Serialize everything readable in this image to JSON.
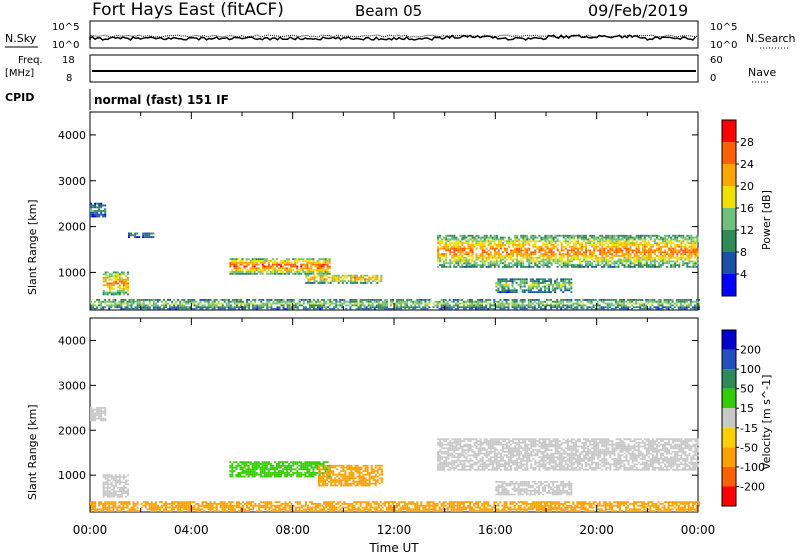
{
  "header": {
    "site": "Fort Hays East (fitACF)",
    "beam": "Beam 05",
    "date": "09/Feb/2019"
  },
  "top_panels": {
    "nsky": {
      "label": "N.Sky",
      "yticks": [
        "10^5",
        "10^0"
      ]
    },
    "nsearch": {
      "label": "N.Search",
      "yticks": [
        "10^5",
        "10^0"
      ]
    },
    "freq": {
      "label_line1": "Freq.",
      "label_line2": "[MHz]",
      "yticks": [
        "18",
        "8"
      ]
    },
    "nave": {
      "label": "Nave",
      "yticks": [
        "60",
        "0"
      ]
    },
    "cpid": {
      "label": "CPID",
      "value": "normal (fast) 151 IF"
    }
  },
  "colors": {
    "power_scale": [
      "#0000ff",
      "#1a50a8",
      "#2e8b57",
      "#6ec07a",
      "#f0e000",
      "#ffa500",
      "#ff6000",
      "#ff0000"
    ],
    "velocity_scale": [
      "#0000d0",
      "#2050c0",
      "#2e8b57",
      "#33cc00",
      "#c8c8c8",
      "#ffd000",
      "#ffa000",
      "#ff6000",
      "#ff0000"
    ]
  },
  "chart_data": [
    {
      "type": "heatmap",
      "id": "power",
      "ylabel": "Slant Range [km]",
      "ylim": [
        180,
        4500
      ],
      "yticks": [
        1000,
        2000,
        3000,
        4000
      ],
      "xlim": [
        0,
        24
      ],
      "colorbar": {
        "label": "Power [dB]",
        "ticks": [
          4,
          8,
          12,
          16,
          20,
          24,
          28
        ],
        "range": [
          0,
          32
        ]
      },
      "echo_regions": [
        {
          "t0": 0.0,
          "t1": 0.6,
          "r0": 2200,
          "r1": 2500,
          "value": 10
        },
        {
          "t0": 0.5,
          "t1": 1.5,
          "r0": 500,
          "r1": 1000,
          "value": 22
        },
        {
          "t0": 1.5,
          "t1": 2.5,
          "r0": 1750,
          "r1": 1850,
          "value": 9
        },
        {
          "t0": 5.5,
          "t1": 9.5,
          "r0": 950,
          "r1": 1300,
          "value": 24
        },
        {
          "t0": 8.5,
          "t1": 11.5,
          "r0": 750,
          "r1": 950,
          "value": 21
        },
        {
          "t0": 13.7,
          "t1": 24.0,
          "r0": 1100,
          "r1": 1800,
          "value": 22
        },
        {
          "t0": 16.0,
          "t1": 19.0,
          "r0": 550,
          "r1": 850,
          "value": 14
        },
        {
          "t0": 0.0,
          "t1": 24.0,
          "r0": 180,
          "r1": 420,
          "value": 14
        }
      ]
    },
    {
      "type": "heatmap",
      "id": "velocity",
      "xlabel": "Time UT",
      "ylabel": "Slant Range [km]",
      "ylim": [
        180,
        4500
      ],
      "yticks": [
        1000,
        2000,
        3000,
        4000
      ],
      "xlim": [
        0,
        24
      ],
      "xticks": [
        "00:00",
        "04:00",
        "08:00",
        "12:00",
        "16:00",
        "20:00",
        "00:00"
      ],
      "colorbar": {
        "label": "Velocity [m s^-1]",
        "ticks": [
          200,
          100,
          50,
          15,
          -15,
          -50,
          -100,
          -200
        ]
      },
      "echo_regions": [
        {
          "t0": 0.0,
          "t1": 0.6,
          "r0": 2200,
          "r1": 2500,
          "value": 0
        },
        {
          "t0": 0.5,
          "t1": 1.5,
          "r0": 500,
          "r1": 1000,
          "value": 0
        },
        {
          "t0": 5.5,
          "t1": 9.5,
          "r0": 950,
          "r1": 1300,
          "value": 40
        },
        {
          "t0": 9.0,
          "t1": 11.5,
          "r0": 750,
          "r1": 1200,
          "value": -70
        },
        {
          "t0": 13.7,
          "t1": 24.0,
          "r0": 1100,
          "r1": 1800,
          "value": 0
        },
        {
          "t0": 16.0,
          "t1": 19.0,
          "r0": 550,
          "r1": 850,
          "value": 0
        },
        {
          "t0": 0.0,
          "t1": 24.0,
          "r0": 180,
          "r1": 420,
          "value": -60
        }
      ]
    }
  ]
}
